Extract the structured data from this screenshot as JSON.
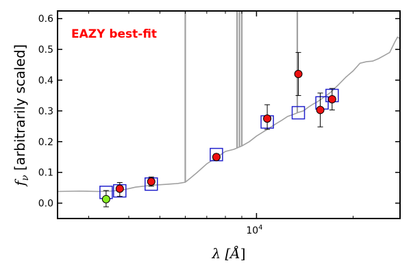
{
  "chart_data": {
    "type": "scatter",
    "title": "",
    "annotation": "EAZY best-fit",
    "xlabel_prefix": "λ [",
    "xlabel_unit": "Å",
    "xlabel_suffix": "]",
    "ylabel_symbol": "f",
    "ylabel_sub": "ν",
    "ylabel_text": " [arbitrarily scaled]",
    "x_scale": "log",
    "xlim": [
      2400,
      28000
    ],
    "ylim": [
      -0.05,
      0.625
    ],
    "y_ticks": [
      0.0,
      0.1,
      0.2,
      0.3,
      0.4,
      0.5,
      0.6
    ],
    "y_tick_labels": [
      "0.0",
      "0.1",
      "0.2",
      "0.3",
      "0.4",
      "0.5",
      "0.6"
    ],
    "x_major_ticks": [
      10000
    ],
    "x_major_tick_labels": [
      "10",
      "4"
    ],
    "x_minor_ticks": [
      3000,
      4000,
      5000,
      6000,
      7000,
      8000,
      9000,
      20000
    ],
    "grid": false,
    "colors": {
      "model": "#a0a0a0",
      "photometry": "#ee1111",
      "upper_point": "#88ee22",
      "model_photometry": "#2222cc",
      "annotation": "#ff0000",
      "axes": "#000000"
    },
    "model_spectrum": {
      "name": "",
      "x": [
        2400,
        2800,
        3200,
        3500,
        3800,
        4200,
        4700,
        5200,
        5700,
        6000,
        6200,
        6500,
        7000,
        7500,
        8000,
        8500,
        9000,
        9500,
        10000,
        10500,
        11000,
        11500,
        12000,
        12500,
        13000,
        13500,
        14000,
        14500,
        15000,
        15500,
        16000,
        16500,
        17000,
        18000,
        19000,
        20000,
        21000,
        22000,
        23000,
        24000,
        25000,
        26000,
        27000,
        27500,
        28000
      ],
      "y": [
        0.038,
        0.039,
        0.038,
        0.039,
        0.042,
        0.052,
        0.058,
        0.061,
        0.064,
        0.068,
        0.08,
        0.098,
        0.128,
        0.148,
        0.168,
        0.175,
        0.186,
        0.2,
        0.218,
        0.232,
        0.245,
        0.258,
        0.27,
        0.282,
        0.288,
        0.295,
        0.3,
        0.312,
        0.322,
        0.33,
        0.34,
        0.35,
        0.36,
        0.385,
        0.41,
        0.43,
        0.455,
        0.46,
        0.462,
        0.47,
        0.48,
        0.49,
        0.525,
        0.54,
        0.535
      ],
      "emission_lines": [
        {
          "x": 6000,
          "top": 0.62
        },
        {
          "x": 8700,
          "top": 0.62
        },
        {
          "x": 8850,
          "top": 0.62
        },
        {
          "x": 9000,
          "top": 0.62
        },
        {
          "x": 13400,
          "top": 0.62
        }
      ]
    },
    "observed": {
      "name": "",
      "x": [
        3750,
        4700,
        7500,
        10800,
        13500,
        15800,
        17200
      ],
      "y": [
        0.047,
        0.07,
        0.15,
        0.275,
        0.42,
        0.303,
        0.338
      ],
      "yerr_low": [
        0.025,
        0.015,
        0.01,
        0.035,
        0.07,
        0.055,
        0.035
      ],
      "yerr_high": [
        0.02,
        0.015,
        0.01,
        0.045,
        0.07,
        0.055,
        0.035
      ]
    },
    "observed_green": {
      "name": "",
      "x": [
        3400
      ],
      "y": [
        0.013
      ],
      "yerr_low": [
        0.025
      ],
      "yerr_high": [
        0.028
      ]
    },
    "model_photometry": {
      "name": "",
      "x": [
        3400,
        3750,
        4700,
        7500,
        10800,
        13500,
        16000,
        17200
      ],
      "y": [
        0.035,
        0.04,
        0.062,
        0.158,
        0.264,
        0.294,
        0.326,
        0.35
      ]
    }
  }
}
